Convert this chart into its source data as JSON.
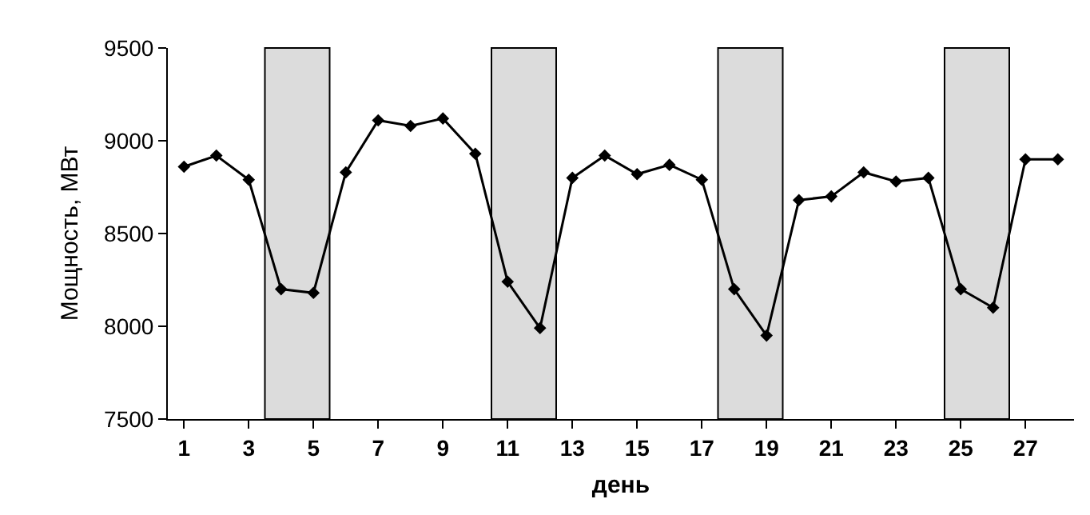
{
  "chart_data": {
    "type": "line",
    "xlabel": "день",
    "ylabel": "Мощность, МВт",
    "x": [
      1,
      2,
      3,
      4,
      5,
      6,
      7,
      8,
      9,
      10,
      11,
      12,
      13,
      14,
      15,
      16,
      17,
      18,
      19,
      20,
      21,
      22,
      23,
      24,
      25,
      26,
      27,
      28
    ],
    "series": [
      {
        "color": "#000000",
        "values": [
          8860,
          8920,
          8790,
          8200,
          8180,
          8830,
          9110,
          9080,
          9120,
          8930,
          8240,
          7990,
          8800,
          8920,
          8820,
          8870,
          8790,
          8200,
          7950,
          8680,
          8700,
          8830,
          8780,
          8800,
          8200,
          8100,
          8900,
          8900
        ]
      }
    ],
    "xlim": [
      0.5,
      28.5
    ],
    "xticks": [
      1,
      3,
      5,
      7,
      9,
      11,
      13,
      15,
      17,
      19,
      21,
      23,
      25,
      27
    ],
    "ylim": [
      7500,
      9500
    ],
    "yticks": [
      7500,
      8000,
      8500,
      9000,
      9500
    ],
    "bands": [
      {
        "axis": "x",
        "from": 3.5,
        "to": 5.5,
        "color": "#dcdcdc"
      },
      {
        "axis": "x",
        "from": 10.5,
        "to": 12.5,
        "color": "#dcdcdc"
      },
      {
        "axis": "x",
        "from": 17.5,
        "to": 19.5,
        "color": "#dcdcdc"
      },
      {
        "axis": "x",
        "from": 24.5,
        "to": 26.5,
        "color": "#dcdcdc"
      }
    ],
    "marker": "diamond",
    "line_style": "solid",
    "grid": false
  }
}
